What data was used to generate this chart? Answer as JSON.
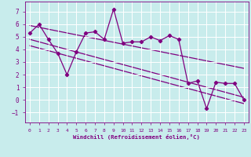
{
  "xlabel": "Windchill (Refroidissement éolien,°C)",
  "background_color": "#c8ecec",
  "line_color": "#800080",
  "grid_color": "#ffffff",
  "xlim": [
    -0.5,
    23.5
  ],
  "ylim": [
    -1.8,
    7.8
  ],
  "yticks": [
    -1,
    0,
    1,
    2,
    3,
    4,
    5,
    6,
    7
  ],
  "xticks": [
    0,
    1,
    2,
    3,
    4,
    5,
    6,
    7,
    8,
    9,
    10,
    11,
    12,
    13,
    14,
    15,
    16,
    17,
    18,
    19,
    20,
    21,
    22,
    23
  ],
  "main_series_x": [
    0,
    1,
    2,
    3,
    4,
    5,
    6,
    7,
    8,
    9,
    10,
    11,
    12,
    13,
    14,
    15,
    16,
    17,
    18,
    19,
    20,
    21,
    22,
    23
  ],
  "main_series_y": [
    5.3,
    6.0,
    4.8,
    3.7,
    2.0,
    3.8,
    5.3,
    5.4,
    4.8,
    7.2,
    4.5,
    4.6,
    4.6,
    5.0,
    4.7,
    5.1,
    4.8,
    1.3,
    1.5,
    -0.7,
    1.4,
    1.3,
    1.3,
    0.0
  ],
  "trend1_x": [
    0,
    23
  ],
  "trend1_y": [
    5.9,
    2.5
  ],
  "trend2_x": [
    0,
    23
  ],
  "trend2_y": [
    4.8,
    0.2
  ],
  "trend3_x": [
    0,
    23
  ],
  "trend3_y": [
    4.3,
    -0.3
  ]
}
